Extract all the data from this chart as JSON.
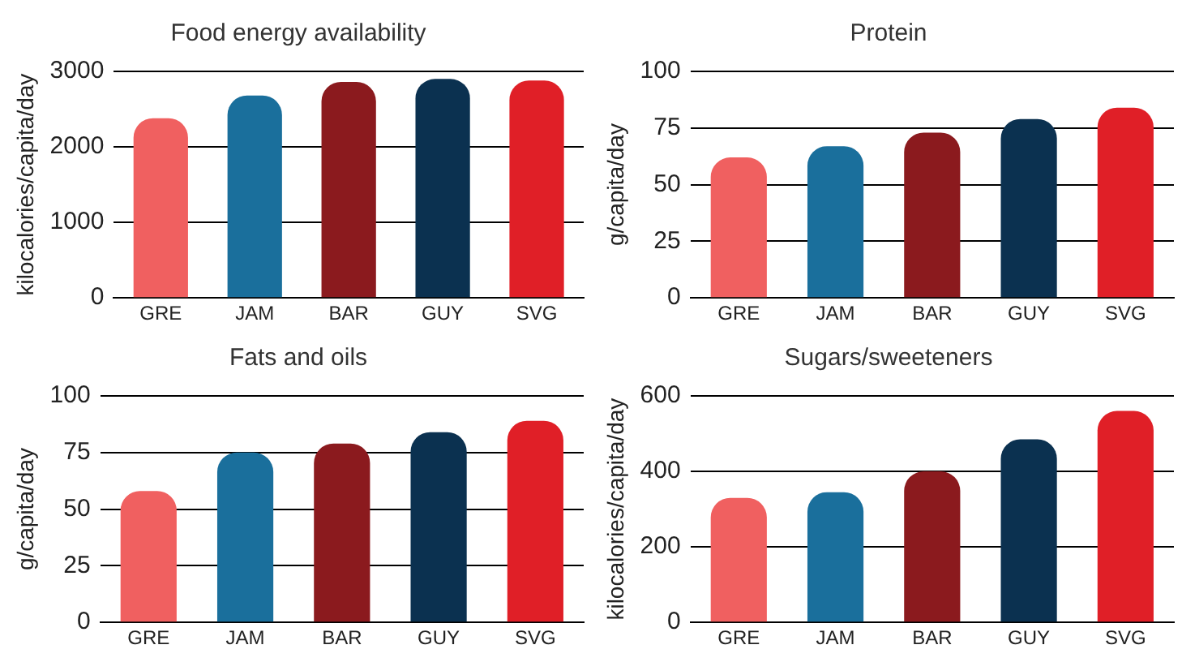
{
  "chart_data": [
    {
      "type": "bar",
      "title": "Food energy availability",
      "ylabel": "kilocalories/capita/day",
      "categories": [
        "GRE",
        "JAM",
        "BAR",
        "GUY",
        "SVG"
      ],
      "values": [
        2380,
        2680,
        2860,
        2900,
        2880
      ],
      "colors": [
        "#f06060",
        "#1a6f9c",
        "#8b1a1e",
        "#0b3150",
        "#e01f27"
      ],
      "ylim": [
        0,
        3000
      ],
      "yticks": [
        0,
        1000,
        2000,
        3000
      ],
      "grid": "y"
    },
    {
      "type": "bar",
      "title": "Protein",
      "ylabel": "g/capita/day",
      "categories": [
        "GRE",
        "JAM",
        "BAR",
        "GUY",
        "SVG"
      ],
      "values": [
        62,
        67,
        73,
        79,
        84
      ],
      "colors": [
        "#f06060",
        "#1a6f9c",
        "#8b1a1e",
        "#0b3150",
        "#e01f27"
      ],
      "ylim": [
        0,
        100
      ],
      "yticks": [
        0,
        25,
        50,
        75,
        100
      ],
      "grid": "y"
    },
    {
      "type": "bar",
      "title": "Fats and oils",
      "ylabel": "g/capita/day",
      "categories": [
        "GRE",
        "JAM",
        "BAR",
        "GUY",
        "SVG"
      ],
      "values": [
        58,
        75,
        79,
        84,
        89
      ],
      "colors": [
        "#f06060",
        "#1a6f9c",
        "#8b1a1e",
        "#0b3150",
        "#e01f27"
      ],
      "ylim": [
        0,
        100
      ],
      "yticks": [
        0,
        25,
        50,
        75,
        100
      ],
      "grid": "y"
    },
    {
      "type": "bar",
      "title": "Sugars/sweeteners",
      "ylabel": "kilocalories/capita/day",
      "categories": [
        "GRE",
        "JAM",
        "BAR",
        "GUY",
        "SVG"
      ],
      "values": [
        330,
        345,
        400,
        485,
        560
      ],
      "colors": [
        "#f06060",
        "#1a6f9c",
        "#8b1a1e",
        "#0b3150",
        "#e01f27"
      ],
      "ylim": [
        0,
        600
      ],
      "yticks": [
        0,
        200,
        400,
        600
      ],
      "grid": "y"
    }
  ]
}
